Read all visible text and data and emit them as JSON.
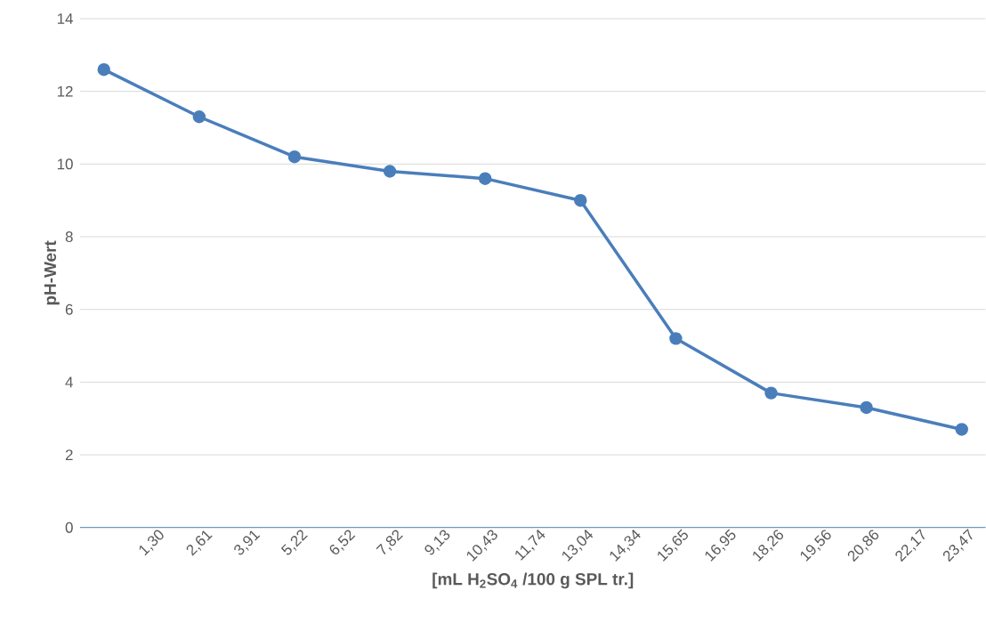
{
  "chart_data": {
    "type": "line",
    "xlabel": "[mL H$_{2}$SO$_{4}$ /100 g SPL tr.]",
    "ylabel": "pH-Wert",
    "categories": [
      null,
      "1,30",
      "2,61",
      "3,91",
      "5,22",
      "6,52",
      "7,82",
      "9,13",
      "10,43",
      "11,74",
      "13,04",
      "14,34",
      "15,65",
      "16,95",
      "18,26",
      "19,56",
      "20,86",
      "22,17",
      "23,47"
    ],
    "values": [
      12.6,
      null,
      11.3,
      null,
      10.2,
      null,
      9.8,
      null,
      9.6,
      null,
      9.0,
      null,
      5.2,
      null,
      3.7,
      null,
      3.3,
      null,
      2.7
    ],
    "color": "#4a7ebb",
    "ylim": [
      0,
      14
    ],
    "yticks": [
      0,
      2,
      4,
      6,
      8,
      10,
      12,
      14
    ],
    "grid": "y",
    "marker": "circle",
    "line_style": "solid"
  }
}
